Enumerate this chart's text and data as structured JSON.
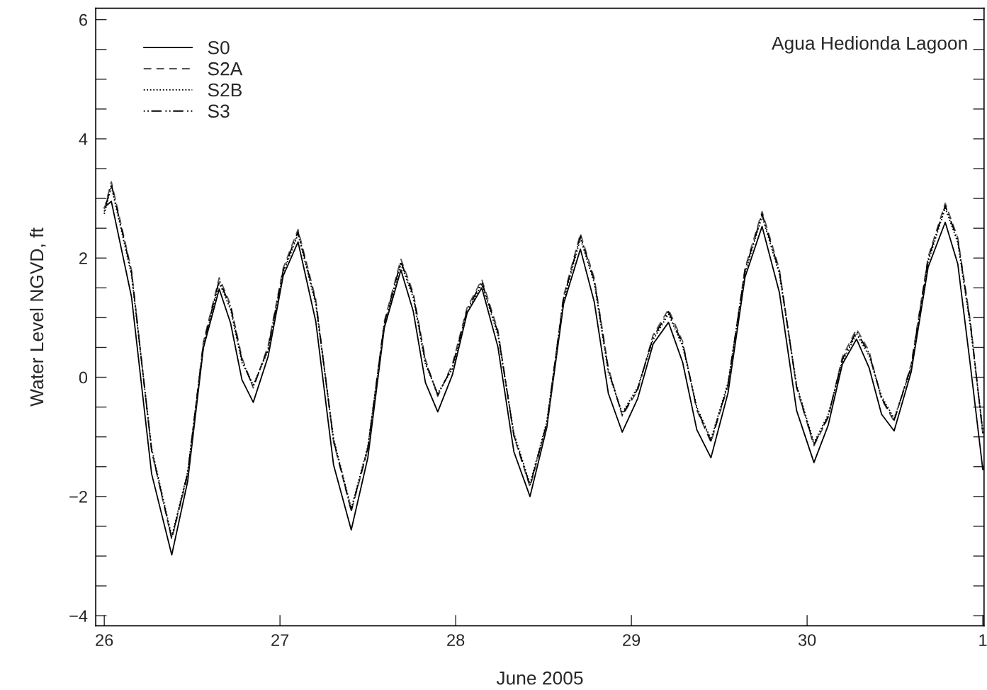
{
  "chart_data": {
    "type": "line",
    "xlabel": "June 2005",
    "ylabel": "Water Level NGVD, ft",
    "annotations": [
      "Agua Hedionda Lagoon"
    ],
    "xlim": [
      "2005-06-25T22:50",
      "2005-07-01T00:10"
    ],
    "xticks": [
      {
        "value": "2005-06-26",
        "label": "26"
      },
      {
        "value": "2005-06-27",
        "label": "27"
      },
      {
        "value": "2005-06-28",
        "label": "28"
      },
      {
        "value": "2005-06-29",
        "label": "29"
      },
      {
        "value": "2005-06-30",
        "label": "30"
      },
      {
        "value": "2005-07-01",
        "label": "1"
      }
    ],
    "ylim": [
      -4.17,
      6.19
    ],
    "yticks": [
      {
        "value": -4,
        "label": "−4"
      },
      {
        "value": -3.5,
        "label": null
      },
      {
        "value": -3,
        "label": null
      },
      {
        "value": -2.5,
        "label": null
      },
      {
        "value": -2,
        "label": "−2"
      },
      {
        "value": -1.5,
        "label": null
      },
      {
        "value": -1,
        "label": null
      },
      {
        "value": -0.5,
        "label": null
      },
      0,
      {
        "value": 0.5,
        "label": null
      },
      {
        "value": 1,
        "label": null
      },
      {
        "value": 1.5,
        "label": null
      },
      2,
      {
        "value": 2.5,
        "label": null
      },
      {
        "value": 3,
        "label": null
      },
      {
        "value": 3.5,
        "label": null
      },
      4,
      {
        "value": 4.5,
        "label": null
      },
      {
        "value": 5,
        "label": null
      },
      {
        "value": 5.5,
        "label": null
      },
      6
    ],
    "grid": false,
    "legend": "top left",
    "marker": "none",
    "x": [
      "2005-06-26T00:00",
      "2005-06-26T00:58",
      "2005-06-26T03:43",
      "2005-06-26T06:28",
      "2005-06-26T09:13",
      "2005-06-26T11:23",
      "2005-06-26T13:32",
      "2005-06-26T15:42",
      "2005-06-26T17:15",
      "2005-06-26T18:48",
      "2005-06-26T20:21",
      "2005-06-26T22:23",
      "2005-06-27T00:26",
      "2005-06-27T02:28",
      "2005-06-27T04:53",
      "2005-06-27T07:19",
      "2005-06-27T09:44",
      "2005-06-27T12:00",
      "2005-06-27T14:15",
      "2005-06-27T16:31",
      "2005-06-27T18:12",
      "2005-06-27T19:52",
      "2005-06-27T21:33",
      "2005-06-27T23:33",
      "2005-06-28T01:34",
      "2005-06-28T03:34",
      "2005-06-28T05:46",
      "2005-06-28T07:57",
      "2005-06-28T10:09",
      "2005-06-28T12:27",
      "2005-06-28T14:44",
      "2005-06-28T17:02",
      "2005-06-28T18:56",
      "2005-06-28T20:51",
      "2005-06-28T22:45",
      "2005-06-29T00:51",
      "2005-06-29T02:58",
      "2005-06-29T05:04",
      "2005-06-29T07:00",
      "2005-06-29T08:56",
      "2005-06-29T10:52",
      "2005-06-29T13:12",
      "2005-06-29T15:31",
      "2005-06-29T17:51",
      "2005-06-29T20:13",
      "2005-06-29T22:34",
      "2005-06-30T00:56",
      "2005-06-30T02:52",
      "2005-06-30T04:49",
      "2005-06-30T06:45",
      "2005-06-30T08:28",
      "2005-06-30T10:10",
      "2005-06-30T11:53",
      "2005-06-30T14:13",
      "2005-06-30T16:32",
      "2005-06-30T18:52",
      "2005-06-30T20:35",
      "2005-06-30T22:18",
      "2005-07-01T00:00"
    ],
    "series": [
      {
        "name": "S0",
        "color": "#000000",
        "line_style": "solid",
        "values": [
          2.85,
          2.95,
          1.35,
          -1.62,
          -2.98,
          -1.75,
          0.49,
          1.48,
          0.91,
          -0.04,
          -0.42,
          0.35,
          1.7,
          2.27,
          0.94,
          -1.47,
          -2.56,
          -1.35,
          0.83,
          1.8,
          1.11,
          -0.09,
          -0.58,
          0.04,
          1.08,
          1.5,
          0.51,
          -1.25,
          -2.0,
          -0.84,
          1.23,
          2.15,
          1.26,
          -0.27,
          -0.92,
          -0.36,
          0.56,
          0.92,
          0.25,
          -0.88,
          -1.35,
          -0.26,
          1.68,
          2.53,
          1.42,
          -0.56,
          -1.43,
          -0.81,
          0.22,
          0.64,
          0.16,
          -0.62,
          -0.9,
          0.09,
          1.85,
          2.6,
          1.9,
          0.2,
          -1.55
        ]
      },
      {
        "name": "S2A",
        "color": "#555555",
        "line_style": "dashed",
        "values": [
          2.82,
          3.28,
          1.8,
          -1.24,
          -2.72,
          -1.64,
          0.59,
          1.67,
          1.22,
          0.33,
          -0.18,
          0.53,
          1.83,
          2.48,
          1.31,
          -1.08,
          -2.25,
          -1.21,
          0.94,
          1.98,
          1.42,
          0.3,
          -0.32,
          0.22,
          1.17,
          1.64,
          0.79,
          -0.99,
          -1.84,
          -0.79,
          1.36,
          2.41,
          1.66,
          0.16,
          -0.65,
          -0.22,
          0.71,
          1.14,
          0.6,
          -0.55,
          -1.09,
          -0.14,
          1.83,
          2.78,
          1.81,
          -0.18,
          -1.15,
          -0.68,
          0.34,
          0.81,
          0.44,
          -0.37,
          -0.74,
          0.22,
          2.02,
          2.92,
          2.34,
          0.94,
          -0.95
        ]
      },
      {
        "name": "S2B",
        "color": "#000000",
        "line_style": "dotted",
        "values": [
          2.74,
          3.2,
          1.72,
          -1.19,
          -2.67,
          -1.59,
          0.51,
          1.59,
          1.14,
          0.25,
          -0.13,
          0.45,
          1.75,
          2.4,
          1.23,
          -1.03,
          -2.2,
          -1.16,
          0.86,
          1.9,
          1.34,
          0.22,
          -0.27,
          0.14,
          1.09,
          1.56,
          0.71,
          -0.94,
          -1.79,
          -0.74,
          1.28,
          2.33,
          1.58,
          0.08,
          -0.6,
          -0.17,
          0.63,
          1.06,
          0.52,
          -0.5,
          -1.04,
          -0.09,
          1.75,
          2.7,
          1.73,
          -0.13,
          -1.1,
          -0.63,
          0.26,
          0.73,
          0.36,
          -0.32,
          -0.69,
          0.14,
          1.94,
          2.84,
          2.26,
          0.86,
          -0.9
        ]
      },
      {
        "name": "S3",
        "color": "#000000",
        "line_style": "dashdot",
        "values": [
          2.78,
          3.24,
          1.76,
          -1.22,
          -2.7,
          -1.62,
          0.55,
          1.63,
          1.18,
          0.29,
          -0.16,
          0.49,
          1.79,
          2.44,
          1.27,
          -1.06,
          -2.23,
          -1.19,
          0.9,
          1.94,
          1.38,
          0.26,
          -0.3,
          0.18,
          1.13,
          1.6,
          0.75,
          -0.97,
          -1.82,
          -0.77,
          1.32,
          2.37,
          1.62,
          0.12,
          -0.63,
          -0.2,
          0.67,
          1.1,
          0.56,
          -0.53,
          -1.07,
          -0.12,
          1.79,
          2.74,
          1.77,
          -0.16,
          -1.13,
          -0.66,
          0.3,
          0.77,
          0.4,
          -0.35,
          -0.72,
          0.18,
          1.98,
          2.88,
          2.3,
          0.9,
          -0.93
        ]
      }
    ]
  }
}
